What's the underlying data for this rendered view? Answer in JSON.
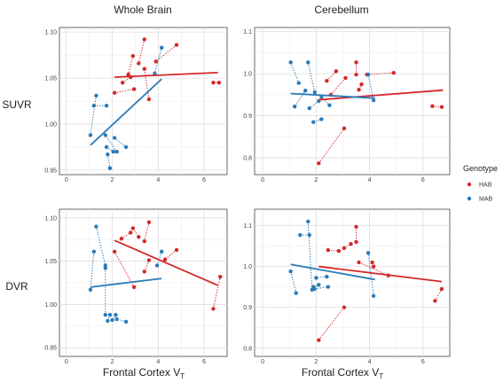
{
  "chart_data": {
    "type": "scatter",
    "column_titles": [
      "Whole Brain",
      "Cerebellum"
    ],
    "row_labels": [
      "SUVR",
      "DVR"
    ],
    "xlabel_main": "Frontal Cortex V",
    "xlabel_sub": "T",
    "legend": {
      "title": "Genotype",
      "placement": "right",
      "entries": [
        {
          "name": "HAB",
          "color": "#d62728"
        },
        {
          "name": "MAB",
          "color": "#2a7ab7"
        }
      ]
    },
    "grid": true,
    "xlim": [
      -0.3,
      7.0
    ],
    "xticks": [
      0,
      2,
      4,
      6
    ],
    "panels": [
      {
        "row": 0,
        "col": 0,
        "ylim": [
          0.945,
          1.105
        ],
        "yticks": [
          0.95,
          1.0,
          1.05,
          1.1
        ],
        "ytick_labels": [
          "0.95",
          "1.00",
          "1.05",
          "1.10"
        ],
        "HAB_pairs": [
          [
            [
              2.1,
              1.034
            ],
            [
              2.95,
              1.038
            ]
          ],
          [
            [
              2.45,
              1.045
            ],
            [
              2.8,
              1.051
            ]
          ],
          [
            [
              2.9,
              1.074
            ],
            [
              2.7,
              1.054
            ]
          ],
          [
            [
              3.4,
              1.092
            ],
            [
              3.15,
              1.066
            ]
          ],
          [
            [
              3.6,
              1.027
            ],
            [
              3.4,
              1.06
            ]
          ],
          [
            [
              4.8,
              1.086
            ],
            [
              3.9,
              1.068
            ]
          ],
          [
            [
              6.4,
              1.045
            ],
            [
              6.65,
              1.045
            ]
          ]
        ],
        "MAB_pairs": [
          [
            [
              1.3,
              1.031
            ],
            [
              1.05,
              0.988
            ]
          ],
          [
            [
              1.2,
              1.02
            ],
            [
              1.75,
              1.02
            ]
          ],
          [
            [
              1.7,
              0.988
            ],
            [
              2.2,
              0.97
            ]
          ],
          [
            [
              1.8,
              0.967
            ],
            [
              1.9,
              0.952
            ]
          ],
          [
            [
              1.75,
              0.975
            ],
            [
              2.05,
              0.97
            ]
          ],
          [
            [
              2.6,
              0.975
            ],
            [
              2.1,
              0.985
            ]
          ],
          [
            [
              4.15,
              1.083
            ],
            [
              3.85,
              1.055
            ]
          ]
        ],
        "fit_HAB": [
          [
            2.1,
            1.051
          ],
          [
            6.6,
            1.056
          ]
        ],
        "fit_MAB": [
          [
            1.05,
            0.977
          ],
          [
            4.15,
            1.049
          ]
        ]
      },
      {
        "row": 0,
        "col": 1,
        "ylim": [
          0.76,
          1.11
        ],
        "yticks": [
          0.8,
          0.9,
          1.0,
          1.1
        ],
        "ytick_labels": [
          "0.8",
          "0.9",
          "1.0",
          "1.1"
        ],
        "HAB_pairs": [
          [
            [
              2.1,
              0.787
            ],
            [
              3.05,
              0.87
            ]
          ],
          [
            [
              2.4,
              0.983
            ],
            [
              2.75,
              1.006
            ]
          ],
          [
            [
              3.1,
              0.99
            ],
            [
              2.55,
              0.95
            ]
          ],
          [
            [
              3.5,
              1.027
            ],
            [
              3.5,
              0.998
            ]
          ],
          [
            [
              3.6,
              0.962
            ],
            [
              3.7,
              0.975
            ]
          ],
          [
            [
              4.9,
              1.002
            ],
            [
              3.9,
              0.998
            ]
          ],
          [
            [
              6.35,
              0.923
            ],
            [
              6.7,
              0.921
            ]
          ]
        ],
        "MAB_pairs": [
          [
            [
              1.05,
              1.027
            ],
            [
              1.35,
              0.978
            ]
          ],
          [
            [
              1.2,
              0.922
            ],
            [
              1.6,
              0.96
            ]
          ],
          [
            [
              1.7,
              1.027
            ],
            [
              1.95,
              0.956
            ]
          ],
          [
            [
              1.9,
              0.885
            ],
            [
              2.2,
              0.892
            ]
          ],
          [
            [
              1.75,
              0.918
            ],
            [
              2.1,
              0.935
            ]
          ],
          [
            [
              2.5,
              0.925
            ],
            [
              2.2,
              0.945
            ]
          ],
          [
            [
              4.15,
              0.937
            ],
            [
              3.95,
              0.998
            ]
          ]
        ],
        "fit_HAB": [
          [
            2.1,
            0.938
          ],
          [
            6.75,
            0.961
          ]
        ],
        "fit_MAB": [
          [
            1.05,
            0.953
          ],
          [
            4.2,
            0.942
          ]
        ]
      },
      {
        "row": 1,
        "col": 0,
        "ylim": [
          0.94,
          1.11
        ],
        "yticks": [
          0.95,
          1.0,
          1.05,
          1.1
        ],
        "ytick_labels": [
          "0.95",
          "1.00",
          "1.05",
          "1.10"
        ],
        "HAB_pairs": [
          [
            [
              2.1,
              1.061
            ],
            [
              2.95,
              1.02
            ]
          ],
          [
            [
              2.4,
              1.076
            ],
            [
              2.8,
              1.083
            ]
          ],
          [
            [
              2.9,
              1.088
            ],
            [
              3.15,
              1.078
            ]
          ],
          [
            [
              3.4,
              1.073
            ],
            [
              3.6,
              1.095
            ]
          ],
          [
            [
              3.6,
              1.051
            ],
            [
              3.4,
              1.038
            ]
          ],
          [
            [
              4.8,
              1.063
            ],
            [
              4.3,
              1.052
            ]
          ],
          [
            [
              6.4,
              0.995
            ],
            [
              6.7,
              1.032
            ]
          ]
        ],
        "MAB_pairs": [
          [
            [
              1.3,
              1.09
            ],
            [
              1.7,
              1.045
            ]
          ],
          [
            [
              1.2,
              1.061
            ],
            [
              1.05,
              1.017
            ]
          ],
          [
            [
              1.7,
              0.988
            ],
            [
              1.7,
              1.042
            ]
          ],
          [
            [
              1.8,
              0.981
            ],
            [
              1.9,
              0.988
            ]
          ],
          [
            [
              2.0,
              0.982
            ],
            [
              2.15,
              0.988
            ]
          ],
          [
            [
              2.6,
              0.98
            ],
            [
              2.2,
              0.983
            ]
          ],
          [
            [
              4.15,
              1.061
            ],
            [
              3.95,
              1.045
            ]
          ]
        ],
        "fit_HAB": [
          [
            2.1,
            1.074
          ],
          [
            6.6,
            1.022
          ]
        ],
        "fit_MAB": [
          [
            1.05,
            1.02
          ],
          [
            4.15,
            1.03
          ]
        ]
      },
      {
        "row": 1,
        "col": 1,
        "ylim": [
          0.78,
          1.14
        ],
        "yticks": [
          0.8,
          0.9,
          1.0,
          1.1
        ],
        "ytick_labels": [
          "0.8",
          "0.9",
          "1.0",
          "1.1"
        ],
        "HAB_pairs": [
          [
            [
              2.1,
              0.82
            ],
            [
              3.05,
              0.9
            ]
          ],
          [
            [
              2.45,
              1.04
            ],
            [
              2.85,
              1.038
            ]
          ],
          [
            [
              3.05,
              1.045
            ],
            [
              3.3,
              1.055
            ]
          ],
          [
            [
              3.5,
              1.097
            ],
            [
              3.5,
              1.06
            ]
          ],
          [
            [
              3.6,
              1.01
            ],
            [
              4.7,
              0.978
            ]
          ],
          [
            [
              4.1,
              1.01
            ],
            [
              4.15,
              1.0
            ]
          ],
          [
            [
              6.45,
              0.916
            ],
            [
              6.7,
              0.945
            ]
          ]
        ],
        "MAB_pairs": [
          [
            [
              1.05,
              0.988
            ],
            [
              1.25,
              0.935
            ]
          ],
          [
            [
              1.4,
              1.077
            ],
            [
              1.75,
              1.077
            ]
          ],
          [
            [
              1.7,
              1.11
            ],
            [
              1.85,
              0.943
            ]
          ],
          [
            [
              1.9,
              0.95
            ],
            [
              2.1,
              0.955
            ]
          ],
          [
            [
              1.95,
              0.945
            ],
            [
              2.45,
              0.95
            ]
          ],
          [
            [
              2.4,
              0.975
            ],
            [
              2.0,
              0.972
            ]
          ],
          [
            [
              4.15,
              0.928
            ],
            [
              3.95,
              1.033
            ]
          ]
        ],
        "fit_HAB": [
          [
            2.1,
            1.0
          ],
          [
            6.7,
            0.963
          ]
        ],
        "fit_MAB": [
          [
            1.05,
            1.005
          ],
          [
            4.2,
            0.968
          ]
        ]
      }
    ]
  }
}
